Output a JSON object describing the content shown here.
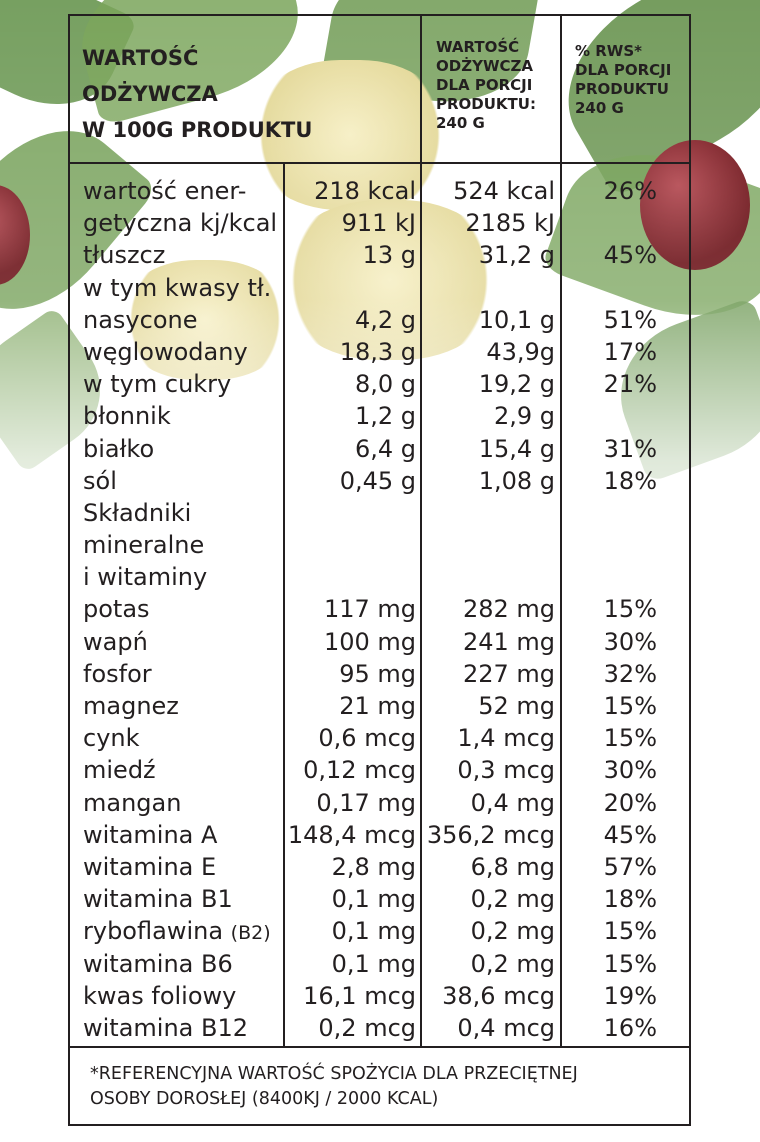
{
  "header": {
    "col1": [
      "WARTOŚĆ",
      "ODŻYWCZA",
      "W 100g PRODUKTU"
    ],
    "col2": [
      "WARTOŚĆ",
      "ODŻYWCZA",
      "DLA PORCJI",
      "PRODUKTU:",
      "240 g"
    ],
    "col3": [
      "% RWS*",
      "DLA PORCJI",
      "PRODUKTU",
      "240 g"
    ]
  },
  "rows": [
    {
      "name": "wartość ener-",
      "per100": "218 kcal",
      "portion": "524 kcal",
      "pct": "26%"
    },
    {
      "name": "getyczna kj/kcal",
      "per100": "911 kJ",
      "portion": "2185 kJ",
      "pct": ""
    },
    {
      "name": "tłuszcz",
      "per100": "13 g",
      "portion": "31,2 g",
      "pct": "45%"
    },
    {
      "name": "w tym kwasy tł.",
      "per100": "",
      "portion": "",
      "pct": ""
    },
    {
      "name": "nasycone",
      "per100": "4,2 g",
      "portion": "10,1 g",
      "pct": "51%"
    },
    {
      "name": "węglowodany",
      "per100": "18,3 g",
      "portion": "43,9g",
      "pct": "17%"
    },
    {
      "name": "w tym cukry",
      "per100": "8,0 g",
      "portion": "19,2 g",
      "pct": "21%"
    },
    {
      "name": "błonnik",
      "per100": "1,2 g",
      "portion": "2,9 g",
      "pct": ""
    },
    {
      "name": "białko",
      "per100": "6,4 g",
      "portion": "15,4 g",
      "pct": "31%"
    },
    {
      "name": "sól",
      "per100": "0,45 g",
      "portion": "1,08 g",
      "pct": "18%"
    },
    {
      "name": "Składniki",
      "per100": "",
      "portion": "",
      "pct": ""
    },
    {
      "name": "mineralne",
      "per100": "",
      "portion": "",
      "pct": ""
    },
    {
      "name": "i witaminy",
      "per100": "",
      "portion": "",
      "pct": ""
    },
    {
      "name": "potas",
      "per100": "117 mg",
      "portion": "282 mg",
      "pct": "15%"
    },
    {
      "name": "wapń",
      "per100": "100 mg",
      "portion": "241 mg",
      "pct": "30%"
    },
    {
      "name": "fosfor",
      "per100": "95 mg",
      "portion": "227 mg",
      "pct": "32%"
    },
    {
      "name": "magnez",
      "per100": "21 mg",
      "portion": "52 mg",
      "pct": "15%"
    },
    {
      "name": "cynk",
      "per100": "0,6 mcg",
      "portion": "1,4 mcg",
      "pct": "15%"
    },
    {
      "name": "miedź",
      "per100": "0,12 mcg",
      "portion": "0,3 mcg",
      "pct": "30%"
    },
    {
      "name": "mangan",
      "per100": "0,17 mg",
      "portion": "0,4 mg",
      "pct": "20%"
    },
    {
      "name": "witamina A",
      "per100": "148,4 mcg",
      "portion": "356,2 mcg",
      "pct": "45%"
    },
    {
      "name": "witamina E",
      "per100": "2,8 mg",
      "portion": "6,8 mg",
      "pct": "57%"
    },
    {
      "name": "witamina B1",
      "per100": "0,1 mg",
      "portion": "0,2 mg",
      "pct": "18%"
    },
    {
      "name": "ryboflawina",
      "name_suffix": "(B2)",
      "per100": "0,1 mg",
      "portion": "0,2 mg",
      "pct": "15%"
    },
    {
      "name": "witamina B6",
      "per100": "0,1 mg",
      "portion": "0,2 mg",
      "pct": "15%"
    },
    {
      "name": "kwas foliowy",
      "per100": "16,1 mcg",
      "portion": "38,6 mcg",
      "pct": "19%"
    },
    {
      "name": "witamina B12",
      "per100": "0,2 mcg",
      "portion": "0,4 mcg",
      "pct": "16%"
    }
  ],
  "footnote": [
    "*REFERENCYJNA WARTOŚĆ SPOŻYCIA DLA PRZECIĘTNEJ",
    "OSOBY DOROSŁEJ (8400KJ / 2000 KCAL)"
  ]
}
